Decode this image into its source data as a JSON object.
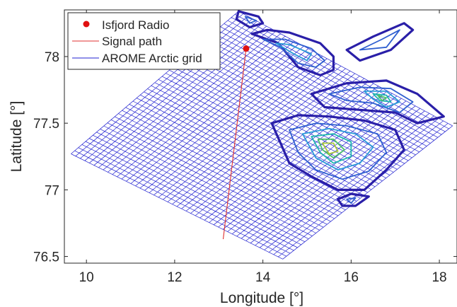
{
  "chart_data": {
    "type": "line",
    "xlabel": "Longitude [°]",
    "ylabel": "Latitude [°]",
    "xlim": [
      9.5,
      18.4
    ],
    "ylim": [
      76.45,
      78.35
    ],
    "xticks": [
      10,
      12,
      14,
      16,
      18
    ],
    "yticks": [
      76.5,
      77,
      77.5,
      78
    ],
    "xtick_labels": [
      "10",
      "12",
      "14",
      "16",
      "18"
    ],
    "ytick_labels": [
      "76.5",
      "77",
      "77.5",
      "78"
    ],
    "grid": false,
    "legend_position": "top-left",
    "legend": [
      "Isfjord Radio",
      "Signal path",
      "AROME Arctic grid"
    ],
    "series": [
      {
        "name": "Isfjord Radio",
        "type": "scatter",
        "color": "#e01010",
        "points": [
          [
            13.62,
            78.06
          ]
        ]
      },
      {
        "name": "Signal path",
        "type": "line",
        "color": "#e03030",
        "points": [
          [
            13.62,
            78.06
          ],
          [
            13.1,
            76.63
          ]
        ]
      },
      {
        "name": "AROME Arctic grid",
        "type": "mesh",
        "color": "#2020d0",
        "corners": {
          "west": [
            9.65,
            77.27
          ],
          "north": [
            13.45,
            78.34
          ],
          "east": [
            18.3,
            77.48
          ],
          "south": [
            14.45,
            76.48
          ]
        },
        "rows": 46,
        "cols": 46
      }
    ],
    "contours": {
      "description_colors": [
        "#2a1fa8",
        "#2f5fd0",
        "#2a9ad8",
        "#1fb7b0",
        "#4cc06a",
        "#a8c83a",
        "#e8b83a",
        "#f5e03a"
      ],
      "regions": [
        {
          "levels": [
            [
              [
                13.75,
                78.17
              ],
              [
                14.35,
                78.1
              ],
              [
                14.8,
                77.92
              ],
              [
                15.3,
                77.86
              ],
              [
                15.6,
                77.9
              ],
              [
                15.6,
                78.0
              ],
              [
                15.3,
                78.1
              ],
              [
                14.6,
                78.18
              ],
              [
                14.1,
                78.2
              ]
            ],
            [
              [
                14.0,
                78.13
              ],
              [
                14.4,
                78.07
              ],
              [
                14.8,
                77.95
              ],
              [
                15.2,
                77.92
              ],
              [
                15.4,
                77.97
              ],
              [
                15.1,
                78.06
              ],
              [
                14.5,
                78.13
              ]
            ],
            [
              [
                14.3,
                78.1
              ],
              [
                14.7,
                78.02
              ],
              [
                15.0,
                77.97
              ],
              [
                15.1,
                78.02
              ],
              [
                14.6,
                78.09
              ]
            ]
          ]
        },
        {
          "levels": [
            [
              [
                15.9,
                78.05
              ],
              [
                16.5,
                78.15
              ],
              [
                17.2,
                78.25
              ],
              [
                17.4,
                78.2
              ],
              [
                16.9,
                78.05
              ],
              [
                16.2,
                77.97
              ]
            ],
            [
              [
                16.2,
                78.05
              ],
              [
                16.7,
                78.13
              ],
              [
                17.1,
                78.2
              ],
              [
                16.8,
                78.07
              ]
            ]
          ]
        },
        {
          "levels": [
            [
              [
                15.1,
                77.72
              ],
              [
                15.9,
                77.8
              ],
              [
                16.8,
                77.82
              ],
              [
                17.5,
                77.72
              ],
              [
                18.1,
                77.55
              ],
              [
                17.5,
                77.5
              ],
              [
                17.0,
                77.58
              ],
              [
                16.2,
                77.6
              ],
              [
                15.4,
                77.62
              ]
            ],
            [
              [
                15.5,
                77.72
              ],
              [
                16.2,
                77.77
              ],
              [
                16.9,
                77.76
              ],
              [
                17.4,
                77.66
              ],
              [
                17.1,
                77.58
              ],
              [
                16.5,
                77.65
              ],
              [
                15.9,
                77.67
              ]
            ],
            [
              [
                16.3,
                77.74
              ],
              [
                16.8,
                77.74
              ],
              [
                17.1,
                77.66
              ],
              [
                16.8,
                77.62
              ],
              [
                16.5,
                77.68
              ]
            ],
            [
              [
                16.5,
                77.72
              ],
              [
                16.8,
                77.71
              ],
              [
                16.9,
                77.66
              ],
              [
                16.65,
                77.67
              ]
            ],
            [
              [
                16.6,
                77.71
              ],
              [
                16.8,
                77.69
              ],
              [
                16.7,
                77.67
              ]
            ]
          ]
        },
        {
          "levels": [
            [
              [
                14.2,
                77.5
              ],
              [
                14.8,
                77.56
              ],
              [
                15.5,
                77.55
              ],
              [
                16.3,
                77.52
              ],
              [
                17.0,
                77.45
              ],
              [
                17.2,
                77.3
              ],
              [
                16.8,
                77.15
              ],
              [
                16.3,
                77.0
              ],
              [
                15.7,
                77.0
              ],
              [
                15.1,
                77.1
              ],
              [
                14.6,
                77.2
              ],
              [
                14.4,
                77.35
              ]
            ],
            [
              [
                14.6,
                77.45
              ],
              [
                15.2,
                77.5
              ],
              [
                15.9,
                77.48
              ],
              [
                16.6,
                77.42
              ],
              [
                16.8,
                77.28
              ],
              [
                16.4,
                77.14
              ],
              [
                15.8,
                77.08
              ],
              [
                15.2,
                77.15
              ],
              [
                14.8,
                77.28
              ]
            ],
            [
              [
                14.9,
                77.42
              ],
              [
                15.5,
                77.46
              ],
              [
                16.1,
                77.42
              ],
              [
                16.5,
                77.32
              ],
              [
                16.2,
                77.2
              ],
              [
                15.7,
                77.15
              ],
              [
                15.2,
                77.24
              ]
            ],
            [
              [
                15.1,
                77.4
              ],
              [
                15.6,
                77.42
              ],
              [
                16.0,
                77.36
              ],
              [
                16.0,
                77.25
              ],
              [
                15.6,
                77.2
              ],
              [
                15.3,
                77.28
              ]
            ],
            [
              [
                15.25,
                77.38
              ],
              [
                15.6,
                77.38
              ],
              [
                15.85,
                77.3
              ],
              [
                15.6,
                77.24
              ],
              [
                15.35,
                77.3
              ]
            ],
            [
              [
                15.35,
                77.35
              ],
              [
                15.6,
                77.35
              ],
              [
                15.7,
                77.29
              ],
              [
                15.5,
                77.27
              ]
            ]
          ]
        },
        {
          "levels": [
            [
              [
                13.45,
                78.34
              ],
              [
                13.9,
                78.3
              ],
              [
                14.0,
                78.25
              ],
              [
                13.7,
                78.22
              ],
              [
                13.4,
                78.28
              ]
            ],
            [
              [
                13.6,
                78.3
              ],
              [
                13.85,
                78.27
              ],
              [
                13.7,
                78.25
              ]
            ]
          ]
        },
        {
          "levels": [
            [
              [
                15.7,
                76.93
              ],
              [
                16.0,
                76.97
              ],
              [
                16.4,
                76.95
              ],
              [
                16.1,
                76.88
              ],
              [
                15.8,
                76.88
              ]
            ],
            [
              [
                15.9,
                76.93
              ],
              [
                16.1,
                76.94
              ],
              [
                16.0,
                76.9
              ]
            ]
          ]
        }
      ]
    }
  }
}
